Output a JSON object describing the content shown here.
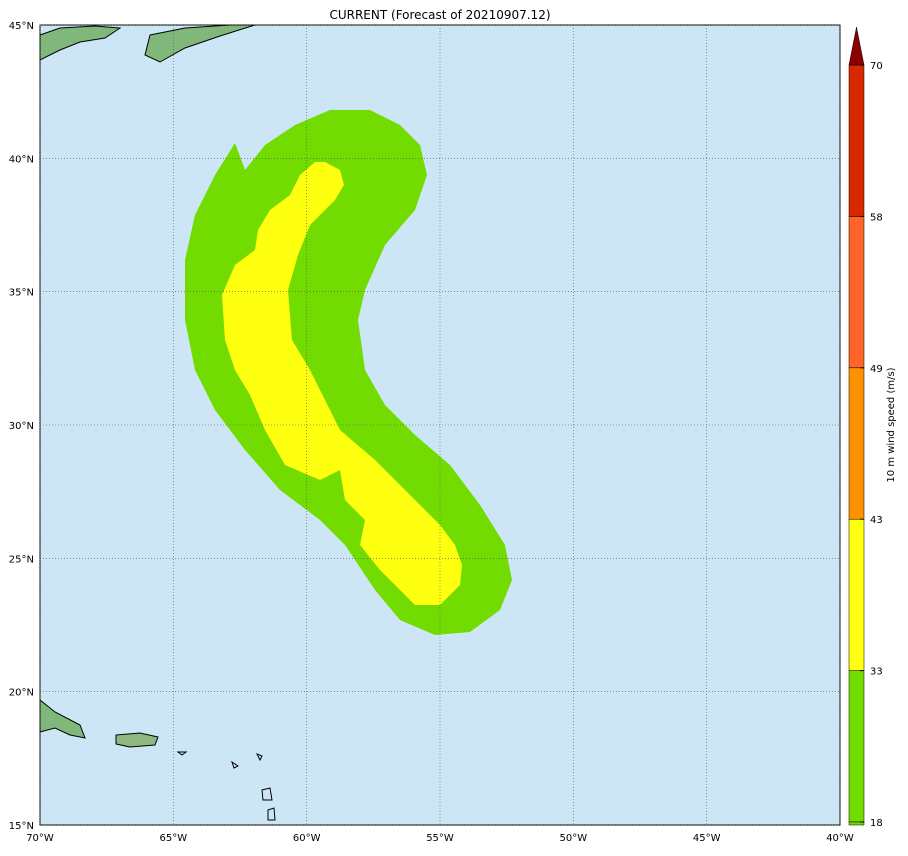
{
  "map": {
    "title": "CURRENT (Forecast of 20210907.12)",
    "lon_ticks": [
      {
        "value": -70,
        "label": "70°W"
      },
      {
        "value": -65,
        "label": "65°W"
      },
      {
        "value": -60,
        "label": "60°W"
      },
      {
        "value": -55,
        "label": "55°W"
      },
      {
        "value": -50,
        "label": "50°W"
      },
      {
        "value": -45,
        "label": "45°W"
      },
      {
        "value": -40,
        "label": "40°W"
      }
    ],
    "lat_ticks": [
      {
        "value": 15,
        "label": "15°N"
      },
      {
        "value": 20,
        "label": "20°N"
      },
      {
        "value": 25,
        "label": "25°N"
      },
      {
        "value": 30,
        "label": "30°N"
      },
      {
        "value": 35,
        "label": "35°N"
      },
      {
        "value": 40,
        "label": "40°N"
      },
      {
        "value": 45,
        "label": "45°N"
      }
    ],
    "colorbar": {
      "label": "10 m wind speed (m/s)",
      "ticks": [
        18,
        33,
        43,
        49,
        58,
        70
      ],
      "colors": [
        "#72dc00",
        "#ffff10",
        "#ff9200",
        "#ff6428",
        "#d82800",
        "#8b0000"
      ]
    }
  }
}
